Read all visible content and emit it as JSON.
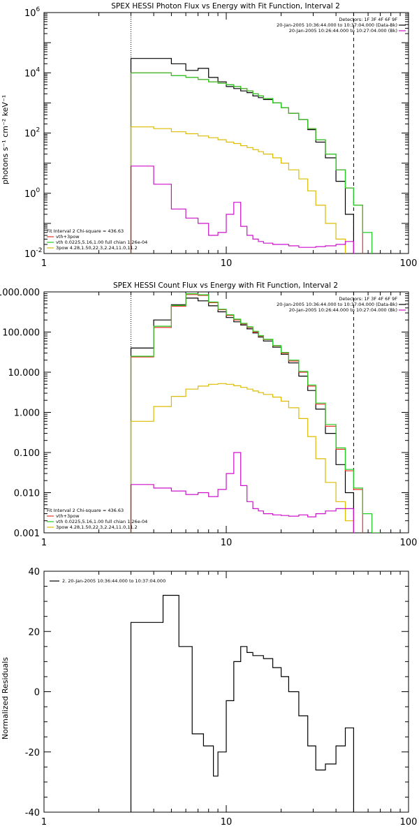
{
  "colors": {
    "black": "#000000",
    "red": "#e8332b",
    "green": "#22cc22",
    "yellow": "#ddbb00",
    "magenta": "#cc11cc"
  },
  "chart_data": [
    {
      "type": "line",
      "step": true,
      "title": "SPEX HESSI Photon Flux vs Energy with Fit Function, Interval 2",
      "ylabel": "photons s⁻¹ cm⁻² keV⁻¹",
      "xscale": "log",
      "yscale": "log",
      "xlim": [
        1,
        100
      ],
      "ylim": [
        0.01,
        1000000
      ],
      "xticks": [
        {
          "v": 1,
          "label": "1"
        },
        {
          "v": 10,
          "label": "10"
        },
        {
          "v": 100,
          "label": "100"
        }
      ],
      "yticks": [
        {
          "v": 0.01,
          "base": "10",
          "exp": "-2"
        },
        {
          "v": 1,
          "base": "10",
          "exp": "0"
        },
        {
          "v": 100,
          "base": "10",
          "exp": "2"
        },
        {
          "v": 10000,
          "base": "10",
          "exp": "4"
        },
        {
          "v": 1000000,
          "base": "10",
          "exp": "6"
        }
      ],
      "vlines": [
        {
          "x": 3,
          "style": "dotted"
        },
        {
          "x": 50,
          "style": "dashed"
        }
      ],
      "edges": [
        3,
        4,
        5,
        6,
        7,
        8,
        9,
        10,
        11,
        12,
        13,
        14,
        15,
        16,
        18,
        20,
        22,
        25,
        28,
        31,
        35,
        40,
        45,
        50,
        56,
        63
      ],
      "series": [
        {
          "color": "black",
          "values": [
            30000,
            30000,
            20000,
            12000,
            14000,
            7000,
            5000,
            3500,
            3000,
            2500,
            2200,
            1700,
            1500,
            1300,
            1000,
            700,
            450,
            280,
            130,
            50,
            15,
            2.5,
            0.2,
            null,
            null
          ]
        },
        {
          "color": "red",
          "values": [
            10000,
            10000,
            8000,
            7000,
            6000,
            5000,
            4500,
            4000,
            3500,
            3000,
            2500,
            2000,
            1700,
            1400,
            1000,
            700,
            450,
            280,
            140,
            60,
            20,
            6,
            1.5,
            0.4,
            null
          ]
        },
        {
          "color": "green",
          "values": [
            10000,
            10000,
            8000,
            7000,
            6000,
            5000,
            4500,
            4000,
            3500,
            3000,
            2500,
            2000,
            1700,
            1400,
            1000,
            700,
            450,
            280,
            140,
            60,
            20,
            6,
            1.5,
            0.4,
            0.05
          ]
        },
        {
          "color": "yellow",
          "values": [
            160,
            140,
            110,
            95,
            80,
            70,
            60,
            50,
            45,
            38,
            33,
            28,
            24,
            20,
            15,
            10,
            6,
            3,
            1.2,
            0.4,
            0.1,
            0.03,
            null,
            null,
            null
          ]
        },
        {
          "color": "magenta",
          "values": [
            8,
            2,
            0.3,
            0.15,
            0.1,
            0.04,
            0.05,
            0.2,
            0.5,
            0.08,
            0.04,
            0.03,
            0.025,
            0.022,
            0.02,
            0.02,
            0.018,
            0.016,
            0.016,
            0.017,
            0.018,
            0.02,
            0.025,
            null,
            null
          ]
        }
      ],
      "legend_top": {
        "lines": [
          {
            "text": "Detectors: 1F 3F 4F 6F 9F",
            "color": ""
          },
          {
            "text": "20-Jan-2005 10:36:44.000 to 10:37:04.000 (Data-Bk)",
            "color": "black"
          },
          {
            "text": "20-Jan-2005 10:26:44.000 to 10:27:04.000 (Bk)",
            "color": "magenta"
          }
        ]
      },
      "legend_bottom": {
        "lines": [
          {
            "text": "Fit Interval 2   Chi-square = 436.63",
            "color": ""
          },
          {
            "text": "vth+3pow",
            "color": "red"
          },
          {
            "text": "vth 0.0225,5.16,1.00  full chian 1.26e-04",
            "color": "green"
          },
          {
            "text": "3pow 4.28,1.50,22.3,2.24,11.0,11.2",
            "color": "yellow"
          }
        ]
      }
    },
    {
      "type": "line",
      "step": true,
      "title": "SPEX HESSI Count Flux vs Energy with Fit Function, Interval 2",
      "ylabel": "",
      "xscale": "log",
      "yscale": "log",
      "xlim": [
        1,
        100
      ],
      "ylim": [
        0.001,
        1000
      ],
      "xticks": [
        {
          "v": 1,
          "label": "1"
        },
        {
          "v": 10,
          "label": "10"
        },
        {
          "v": 100,
          "label": "100"
        }
      ],
      "yticks": [
        {
          "v": 0.001,
          "label": "0.001"
        },
        {
          "v": 0.01,
          "label": "0.010"
        },
        {
          "v": 0.1,
          "label": "0.100"
        },
        {
          "v": 1,
          "label": "1.000"
        },
        {
          "v": 10,
          "label": "10.000"
        },
        {
          "v": 100,
          "label": "100.000"
        },
        {
          "v": 1000,
          "label": "1000.000"
        }
      ],
      "vlines": [
        {
          "x": 3,
          "style": "dotted"
        },
        {
          "x": 50,
          "style": "dashed"
        }
      ],
      "edges": [
        3,
        4,
        5,
        6,
        7,
        8,
        9,
        10,
        11,
        12,
        13,
        14,
        15,
        16,
        18,
        20,
        22,
        25,
        28,
        31,
        35,
        40,
        45,
        50,
        56,
        63,
        70
      ],
      "series": [
        {
          "color": "black",
          "values": [
            40,
            200,
            480,
            700,
            600,
            450,
            320,
            230,
            180,
            150,
            120,
            95,
            75,
            60,
            42,
            28,
            17,
            8,
            3.5,
            1.2,
            0.3,
            0.05,
            0.01,
            null,
            null,
            null
          ]
        },
        {
          "color": "red",
          "values": [
            24,
            130,
            440,
            860,
            820,
            540,
            360,
            260,
            200,
            160,
            130,
            100,
            80,
            65,
            45,
            30,
            19,
            10,
            4.5,
            1.6,
            0.45,
            0.12,
            0.035,
            0.012,
            null,
            null
          ]
        },
        {
          "color": "green",
          "values": [
            25,
            140,
            460,
            900,
            850,
            560,
            370,
            270,
            210,
            165,
            135,
            105,
            82,
            66,
            46,
            31,
            20,
            10.5,
            4.8,
            1.7,
            0.5,
            0.13,
            0.038,
            0.013,
            0.003,
            0.001
          ]
        },
        {
          "color": "yellow",
          "values": [
            0.6,
            1.4,
            2.5,
            3.8,
            4.5,
            5,
            5.2,
            5,
            4.6,
            4.2,
            3.8,
            3.4,
            3.1,
            2.8,
            2.4,
            1.9,
            1.3,
            0.7,
            0.25,
            0.07,
            0.018,
            0.006,
            0.002,
            null,
            null,
            null
          ]
        },
        {
          "color": "magenta",
          "values": [
            0.016,
            0.013,
            0.011,
            0.009,
            0.01,
            0.008,
            0.012,
            0.03,
            0.1,
            0.015,
            0.006,
            0.004,
            0.0035,
            0.003,
            0.0028,
            0.0027,
            0.0026,
            0.0028,
            0.0025,
            0.003,
            0.0035,
            0.004,
            0.004,
            null,
            null,
            null
          ]
        }
      ],
      "legend_top": {
        "lines": [
          {
            "text": "Detectors: 1F 3F 4F 6F 9F",
            "color": ""
          },
          {
            "text": "20-Jan-2005 10:36:44.000 to 10:37:04.000 (Data-Bk)",
            "color": "black"
          },
          {
            "text": "20-Jan-2005 10:26:44.000 to 10:27:04.000 (Bk)",
            "color": "magenta"
          }
        ]
      },
      "legend_bottom": {
        "lines": [
          {
            "text": "Fit Interval 2   Chi-square = 436.63",
            "color": ""
          },
          {
            "text": "vth+3pow",
            "color": "red"
          },
          {
            "text": "vth 0.0225,5.16,1.00  full chian 1.26e-04",
            "color": "green"
          },
          {
            "text": "3pow 4.28,1.50,22.3,2.24,11.0,11.2",
            "color": "yellow"
          }
        ]
      }
    },
    {
      "type": "line",
      "step": true,
      "title": "",
      "ylabel": "Normalized Residuals",
      "xscale": "log",
      "yscale": "linear",
      "xlim": [
        1,
        100
      ],
      "ylim": [
        -40,
        40
      ],
      "xticks": [
        {
          "v": 1,
          "label": "1"
        },
        {
          "v": 10,
          "label": "10"
        },
        {
          "v": 100,
          "label": "100"
        }
      ],
      "yticks": [
        {
          "v": -40,
          "label": "-40"
        },
        {
          "v": -20,
          "label": "-20"
        },
        {
          "v": 0,
          "label": "0"
        },
        {
          "v": 20,
          "label": "20"
        },
        {
          "v": 40,
          "label": "40"
        }
      ],
      "vlines": [],
      "edges": [
        3,
        3.5,
        4,
        4.5,
        5,
        5.5,
        6,
        6.5,
        7,
        7.5,
        8,
        8.5,
        9,
        10,
        11,
        12,
        13,
        14,
        15,
        16,
        18,
        20,
        22,
        25,
        28,
        31,
        35,
        40,
        45,
        50
      ],
      "start_from_bottom": true,
      "end_to_bottom": true,
      "series": [
        {
          "color": "black",
          "values": [
            23,
            23,
            23,
            32,
            32,
            15,
            15,
            -14,
            -14,
            -18,
            -18,
            -28,
            -20,
            -3,
            10,
            15,
            13,
            12,
            12,
            11,
            8,
            5,
            0,
            -8,
            -18,
            -26,
            -24,
            -18,
            -12
          ]
        }
      ],
      "legend_top": {
        "lines": [
          {
            "text": "2. 20-Jan-2005 10:36:44.000 to 10:37:04.000",
            "color": "black"
          }
        ]
      },
      "legend_bottom": {
        "lines": []
      }
    }
  ]
}
